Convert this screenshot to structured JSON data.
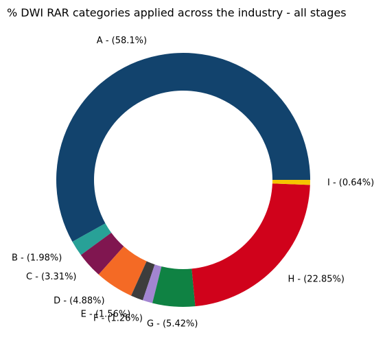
{
  "chart_data": {
    "type": "pie",
    "variant": "donut",
    "title": "% DWI RAR categories applied across the industry - all stages",
    "start_angle_deg": 0,
    "direction": "counterclockwise",
    "slices": [
      {
        "label": "A - (58.1%)",
        "value": 58.1,
        "color": "#12436d"
      },
      {
        "label": "B - (1.98%)",
        "value": 1.98,
        "color": "#28a197"
      },
      {
        "label": "C - (3.31%)",
        "value": 3.31,
        "color": "#801650"
      },
      {
        "label": "D - (4.88%)",
        "value": 4.88,
        "color": "#f46a25"
      },
      {
        "label": "E - (1.56%)",
        "value": 1.56,
        "color": "#3d3d3d"
      },
      {
        "label": "F - (1.26%)",
        "value": 1.26,
        "color": "#a285d1"
      },
      {
        "label": "G - (5.42%)",
        "value": 5.42,
        "color": "#0f8243"
      },
      {
        "label": "H - (22.85%)",
        "value": 22.85,
        "color": "#d0021b"
      },
      {
        "label": "I - (0.64%)",
        "value": 0.64,
        "color": "#f5c400"
      }
    ]
  }
}
